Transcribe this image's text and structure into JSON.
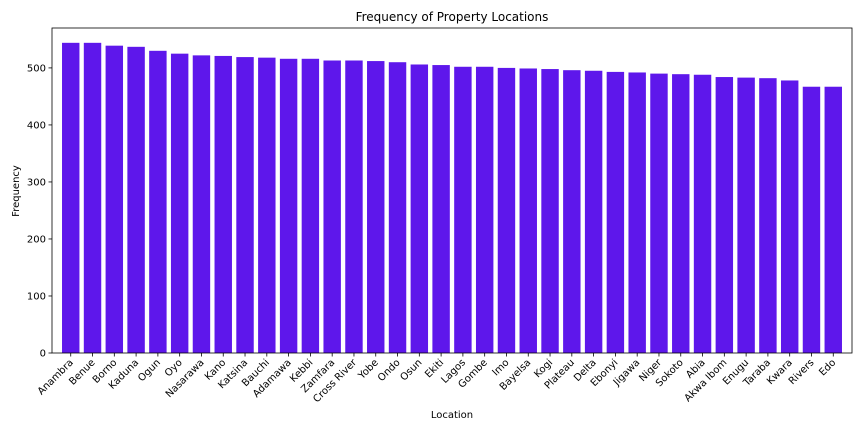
{
  "colors": {
    "bar": "#5e17eb",
    "axis": "#000000",
    "background": "#ffffff"
  },
  "chart_data": {
    "type": "bar",
    "title": "Frequency of Property Locations",
    "xlabel": "Location",
    "ylabel": "Frequency",
    "ylim": [
      0,
      570
    ],
    "yticks": [
      0,
      100,
      200,
      300,
      400,
      500
    ],
    "grid": false,
    "legend": "none",
    "categories": [
      "Anambra",
      "Benue",
      "Borno",
      "Kaduna",
      "Ogun",
      "Oyo",
      "Nasarawa",
      "Kano",
      "Katsina",
      "Bauchi",
      "Adamawa",
      "Kebbi",
      "Zamfara",
      "Cross River",
      "Yobe",
      "Ondo",
      "Osun",
      "Ekiti",
      "Lagos",
      "Gombe",
      "Imo",
      "Bayelsa",
      "Kogi",
      "Plateau",
      "Delta",
      "Ebonyi",
      "Jigawa",
      "Niger",
      "Sokoto",
      "Abia",
      "Akwa Ibom",
      "Enugu",
      "Taraba",
      "Kwara",
      "Rivers",
      "Edo"
    ],
    "values": [
      544,
      544,
      539,
      537,
      530,
      525,
      522,
      521,
      519,
      518,
      516,
      516,
      513,
      513,
      512,
      510,
      506,
      505,
      502,
      502,
      500,
      499,
      498,
      496,
      495,
      493,
      492,
      490,
      489,
      488,
      484,
      483,
      482,
      478,
      467,
      467
    ]
  }
}
